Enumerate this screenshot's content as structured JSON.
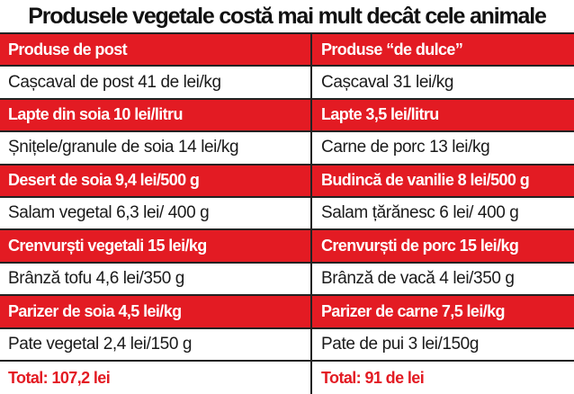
{
  "title": "Produsele vegetale costă mai mult decât cele animale",
  "colors": {
    "accent": "#e31b23",
    "text": "#1a1a1a",
    "background": "#ffffff"
  },
  "columns": [
    "Produse de post",
    "Produse “de dulce”"
  ],
  "rows": [
    {
      "style": "white",
      "left": "Cașcaval de post 41 de lei/kg",
      "right": "Cașcaval 31 lei/kg"
    },
    {
      "style": "red",
      "left": "Lapte din soia 10 lei/litru",
      "right": "Lapte 3,5 lei/litru"
    },
    {
      "style": "white",
      "left": "Șnițele/granule de soia 14 lei/kg",
      "right": "Carne de porc 13 lei/kg"
    },
    {
      "style": "red",
      "left": "Desert de soia 9,4 lei/500 g",
      "right": "Budincă de vanilie 8 lei/500 g"
    },
    {
      "style": "white",
      "left": "Salam vegetal 6,3 lei/ 400 g",
      "right": "Salam țărănesc 6 lei/ 400 g"
    },
    {
      "style": "red",
      "left": "Crenvurști vegetali 15 lei/kg",
      "right": "Crenvurști de porc 15 lei/kg"
    },
    {
      "style": "white",
      "left": "Brânză tofu 4,6 lei/350 g",
      "right": "Brânză de vacă 4 lei/350 g"
    },
    {
      "style": "red",
      "left": "Parizer de soia 4,5 lei/kg",
      "right": "Parizer de carne 7,5 lei/kg"
    },
    {
      "style": "white",
      "left": "Pate vegetal 2,4 lei/150 g",
      "right": "Pate de pui 3 lei/150g"
    }
  ],
  "totals": {
    "left": "Total: 107,2 lei",
    "right": "Total: 91 de lei"
  }
}
